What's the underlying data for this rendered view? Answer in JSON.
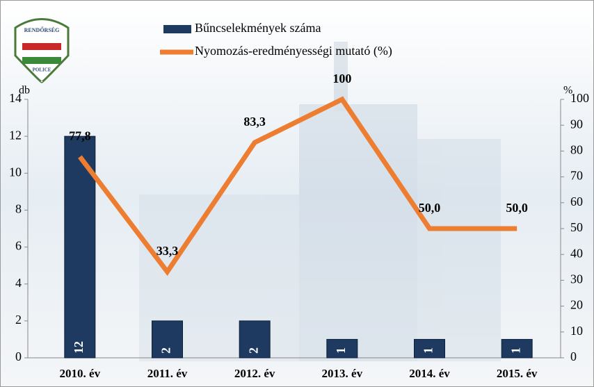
{
  "chart_data": {
    "type": "combo",
    "logo": {
      "top": "RENDŐRSÉG",
      "bottom": "POLICE"
    },
    "ylabel": "db",
    "y2label": "%",
    "categories": [
      "2010. év",
      "2011. év",
      "2012. év",
      "2013. év",
      "2014. év",
      "2015. év"
    ],
    "series": [
      {
        "name": "Bűncselekmények száma",
        "type": "bar",
        "color": "#1f3a60",
        "values": [
          12,
          2,
          2,
          1,
          1,
          1
        ]
      },
      {
        "name": "Nyomozás-eredményességi mutató (%)",
        "type": "line",
        "axis": "y2",
        "color": "#ed7d31",
        "values": [
          77.8,
          33.3,
          83.3,
          100,
          50,
          50
        ],
        "value_labels": [
          "77,8",
          "33,3",
          "83,3",
          "100",
          "50,0",
          "50,0"
        ]
      }
    ],
    "ylim": [
      0,
      14
    ],
    "yticks": [
      0,
      2,
      4,
      6,
      8,
      10,
      12,
      14
    ],
    "y2lim": [
      0,
      100
    ],
    "y2ticks": [
      0,
      10,
      20,
      30,
      40,
      50,
      60,
      70,
      80,
      90,
      100
    ],
    "legend": "top"
  }
}
